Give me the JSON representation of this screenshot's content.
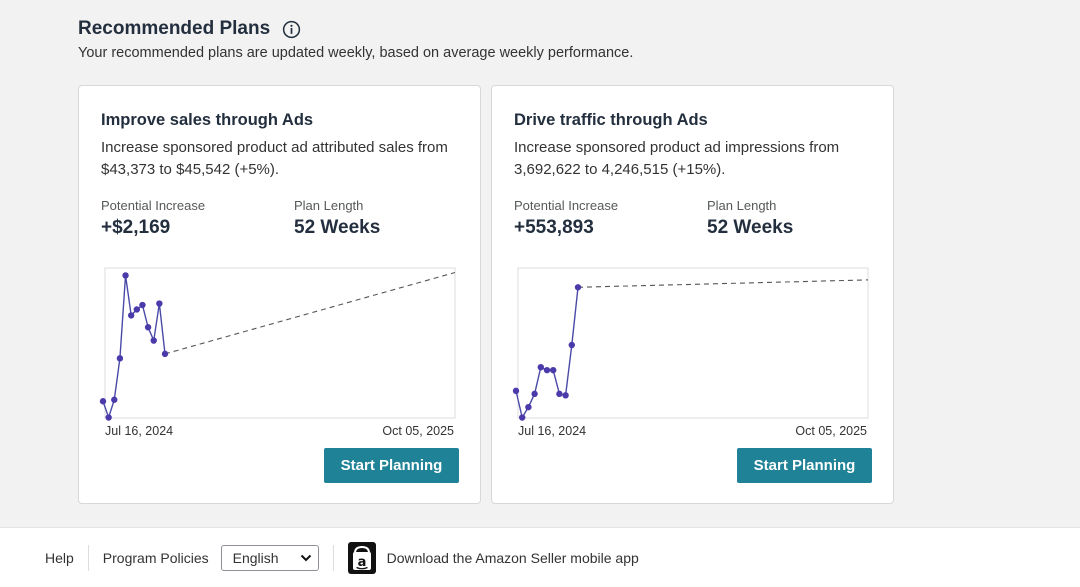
{
  "header": {
    "title": "Recommended Plans",
    "subtitle": "Your recommended plans are updated weekly, based on average weekly performance."
  },
  "cards": [
    {
      "title": "Improve sales through Ads",
      "description": "Increase sponsored product ad attributed sales from $43,373 to $45,542 (+5%).",
      "potential_label": "Potential Increase",
      "potential_value": "+$2,169",
      "length_label": "Plan Length",
      "length_value": "52 Weeks",
      "x_start": "Jul 16, 2024",
      "x_end": "Oct 05, 2025",
      "button": "Start Planning",
      "chart_data": {
        "type": "line",
        "history_values": [
          0.12,
          0.01,
          0.13,
          0.41,
          0.97,
          0.7,
          0.74,
          0.77,
          0.62,
          0.53,
          0.78,
          0.44
        ],
        "projection_end": 0.99,
        "projection_fraction_of_width": 1.0
      }
    },
    {
      "title": "Drive traffic through Ads",
      "description": "Increase sponsored product ad impressions from 3,692,622 to 4,246,515 (+15%).",
      "potential_label": "Potential Increase",
      "potential_value": "+553,893",
      "length_label": "Plan Length",
      "length_value": "52 Weeks",
      "x_start": "Jul 16, 2024",
      "x_end": "Oct 05, 2025",
      "button": "Start Planning",
      "chart_data": {
        "type": "line",
        "history_values": [
          0.19,
          0.01,
          0.08,
          0.17,
          0.35,
          0.33,
          0.33,
          0.17,
          0.16,
          0.5,
          0.89
        ],
        "projection_end": 0.94,
        "projection_fraction_of_width": 1.0
      }
    }
  ],
  "footer": {
    "help": "Help",
    "policies": "Program Policies",
    "language": "English",
    "app_text": "Download the Amazon Seller mobile app"
  },
  "colors": {
    "line": "#4a4aa8",
    "point": "#4b3aaa",
    "button": "#1f8297"
  }
}
